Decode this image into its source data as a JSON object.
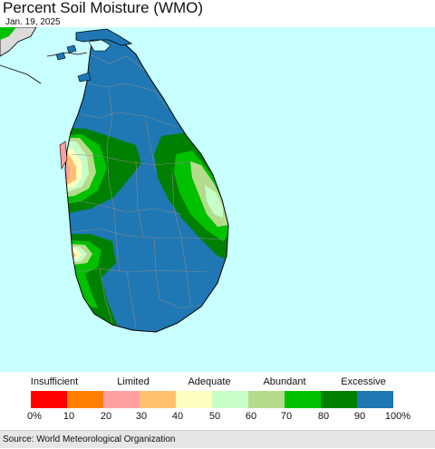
{
  "title": "Percent Soil Moisture (WMO)",
  "date": "Jan. 19, 2025",
  "source": "Source: World Meteorological Organization",
  "colors": {
    "sea": "#c8ffff",
    "land_surround": "#dcdcdc",
    "excessive": "#1f78b4",
    "c80_90": "#008000",
    "c70_80": "#00c000",
    "c60_70": "#b4dc8c",
    "c50_60": "#c8ffc8",
    "c40_50": "#ffffc0",
    "c30_40": "#ffc070",
    "c20_30": "#ffa0a0",
    "border": "#888888"
  },
  "legend": {
    "categories": [
      "Insufficient",
      "Limited",
      "Adequate",
      "Abundant",
      "Excessive"
    ],
    "ticks": [
      "0%",
      "10",
      "20",
      "30",
      "40",
      "50",
      "60",
      "70",
      "80",
      "90",
      "100%"
    ],
    "swatches": [
      "#ff0000",
      "#ff8000",
      "#ffa0a0",
      "#ffc070",
      "#ffffc0",
      "#c8ffc8",
      "#b4dc8c",
      "#00c000",
      "#008000",
      "#1f78b4"
    ]
  }
}
